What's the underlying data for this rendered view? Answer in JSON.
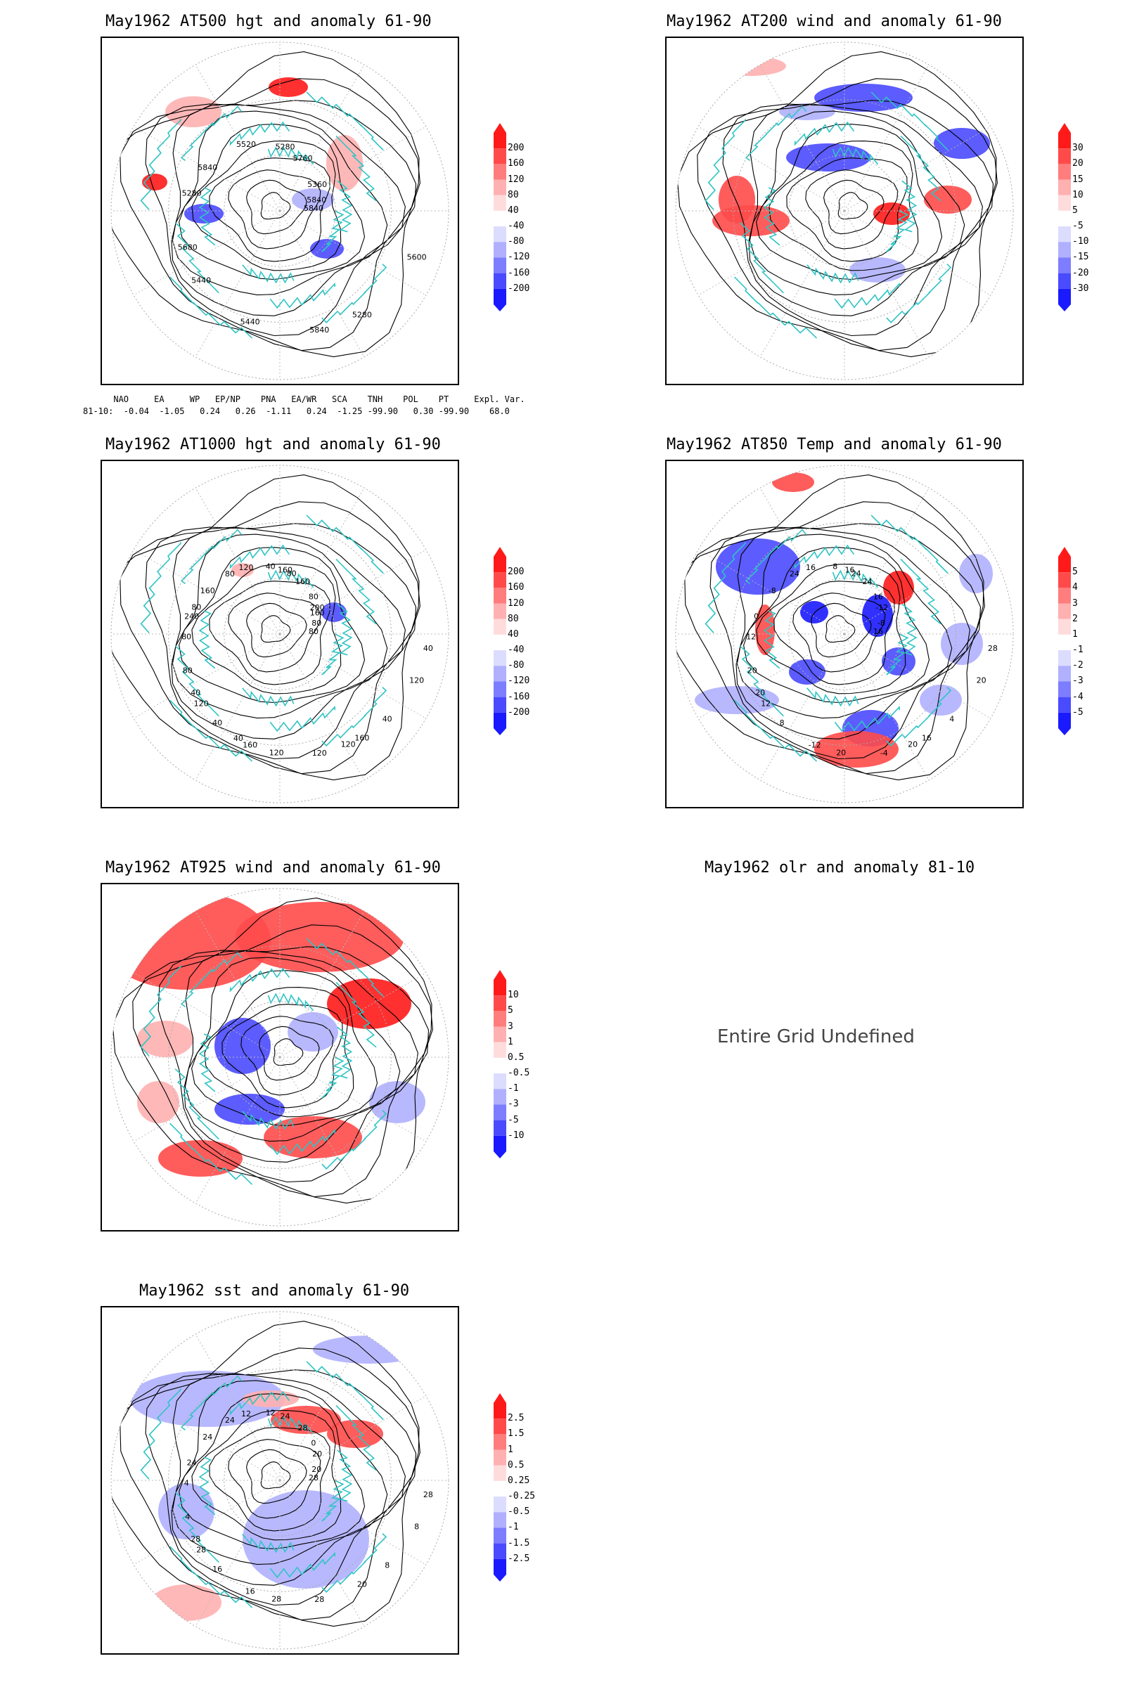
{
  "panels": [
    {
      "title": "May1962 AT500 hgt and anomaly 61-90",
      "contour_labels": [
        "5840",
        "5440",
        "5280",
        "5280",
        "5280",
        "5360",
        "5440",
        "5520",
        "5600",
        "5680",
        "5760",
        "5840",
        "5840",
        "5840"
      ],
      "colorbar": [
        "200",
        "160",
        "120",
        "80",
        "40",
        "-40",
        "-80",
        "-120",
        "-160",
        "-200"
      ]
    },
    {
      "title": "May1962 AT200 wind and anomaly 61-90",
      "contour_labels": [],
      "colorbar": [
        "30",
        "20",
        "15",
        "10",
        "5",
        "-5",
        "-10",
        "-15",
        "-20",
        "-30"
      ]
    },
    {
      "title": "May1962 AT1000 hgt and anomaly 61-90",
      "contour_labels": [
        "80",
        "120",
        "160",
        "160",
        "240",
        "200",
        "160",
        "120",
        "120",
        "80",
        "160",
        "120",
        "160",
        "80",
        "40",
        "40",
        "40",
        "80",
        "80",
        "120",
        "80",
        "40",
        "40",
        "80",
        "120",
        "80",
        "160",
        "40"
      ],
      "colorbar": [
        "200",
        "160",
        "120",
        "80",
        "40",
        "-40",
        "-80",
        "-120",
        "-160",
        "-200"
      ]
    },
    {
      "title": "May1962 AT850 Temp and anomaly 61-90",
      "contour_labels": [
        "16",
        "12",
        "16",
        "16",
        "0",
        "-12",
        "-12",
        "16",
        "20",
        "20",
        "24",
        "-4",
        "-8",
        "-8",
        "8",
        "8",
        "4",
        "12",
        "16",
        "20",
        "24",
        "28",
        "20",
        "24",
        "20"
      ],
      "colorbar": [
        "5",
        "4",
        "3",
        "2",
        "1",
        "-1",
        "-2",
        "-3",
        "-4",
        "-5"
      ]
    },
    {
      "title": "May1962 AT925 wind and anomaly 61-90",
      "contour_labels": [],
      "colorbar": [
        "10",
        "5",
        "3",
        "1",
        "0.5",
        "-0.5",
        "-1",
        "-3",
        "-5",
        "-10"
      ]
    },
    {
      "title": "May1962 olr and anomaly 81-10",
      "message": "Entire Grid Undefined"
    },
    {
      "title": "May1962 sst and anomaly 61-90",
      "contour_labels": [
        "28",
        "28",
        "24",
        "20",
        "24",
        "20",
        "16",
        "12",
        "8",
        "4",
        "28",
        "28",
        "24",
        "20",
        "16",
        "12",
        "8",
        "4",
        "0",
        "28",
        "24",
        "28",
        "28"
      ],
      "colorbar": [
        "2.5",
        "1.5",
        "1",
        "0.5",
        "0.25",
        "-0.25",
        "-0.5",
        "-1",
        "-1.5",
        "-2.5"
      ]
    }
  ],
  "teleconnection": {
    "header": "      NAO     EA     WP   EP/NP    PNA   EA/WR   SCA    TNH    POL    PT     Expl. Var.",
    "row": "81-10:  -0.04  -1.05   0.24   0.26  -1.11   0.24  -1.25 -99.90   0.30 -99.90    68.0"
  },
  "colors": {
    "coastline": "#2ec4c4",
    "contour": "#000000",
    "colorbar_fills": [
      "#ff1a1a",
      "#ff4a4a",
      "#ff7d7d",
      "#ffb0b0",
      "#ffdcdc",
      "#ffffff",
      "#dcdcff",
      "#b0b0ff",
      "#7d7dff",
      "#4a4aff",
      "#1a1aff"
    ]
  }
}
